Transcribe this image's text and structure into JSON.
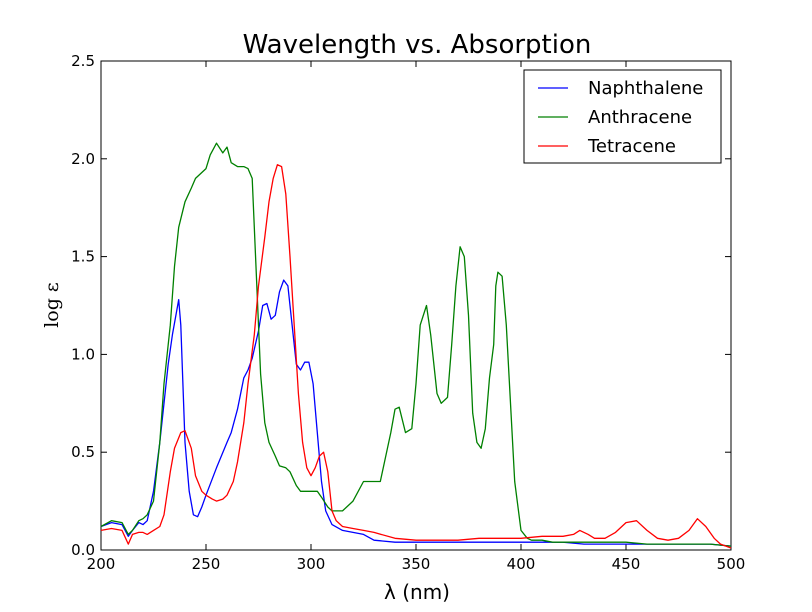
{
  "chart_data": {
    "type": "line",
    "title": "Wavelength vs. Absorption",
    "xlabel": "λ (nm)",
    "ylabel": "log ε",
    "xlim": [
      200,
      500
    ],
    "ylim": [
      0.0,
      2.5
    ],
    "xticks": [
      200,
      250,
      300,
      350,
      400,
      450,
      500
    ],
    "yticks": [
      0.0,
      0.5,
      1.0,
      1.5,
      2.0,
      2.5
    ],
    "xtick_labels": [
      "200",
      "250",
      "300",
      "350",
      "400",
      "450",
      "500"
    ],
    "ytick_labels": [
      "0.0",
      "0.5",
      "1.0",
      "1.5",
      "2.0",
      "2.5"
    ],
    "legend_position": "top-right",
    "grid": false,
    "series": [
      {
        "name": "Naphthalene",
        "color": "#0000ff",
        "x": [
          200,
          205,
          210,
          213,
          215,
          218,
          220,
          222,
          225,
          228,
          230,
          232,
          234,
          236,
          237,
          238,
          240,
          242,
          244,
          246,
          248,
          250,
          255,
          260,
          262,
          265,
          268,
          270,
          272,
          275,
          277,
          279,
          281,
          283,
          285,
          287,
          289,
          291,
          293,
          295,
          297,
          299,
          301,
          303,
          305,
          307,
          310,
          315,
          320,
          325,
          330,
          340,
          350,
          360,
          370,
          380,
          390,
          400,
          410,
          420,
          430,
          440,
          450,
          460,
          470,
          480,
          490,
          500
        ],
        "values": [
          0.12,
          0.14,
          0.13,
          0.07,
          0.1,
          0.14,
          0.13,
          0.15,
          0.3,
          0.55,
          0.75,
          0.95,
          1.1,
          1.22,
          1.28,
          1.15,
          0.55,
          0.3,
          0.18,
          0.17,
          0.22,
          0.28,
          0.42,
          0.55,
          0.6,
          0.72,
          0.88,
          0.92,
          0.98,
          1.12,
          1.25,
          1.26,
          1.18,
          1.2,
          1.32,
          1.38,
          1.35,
          1.15,
          0.95,
          0.92,
          0.96,
          0.96,
          0.85,
          0.6,
          0.35,
          0.2,
          0.13,
          0.1,
          0.09,
          0.08,
          0.05,
          0.04,
          0.04,
          0.04,
          0.04,
          0.04,
          0.04,
          0.04,
          0.04,
          0.04,
          0.03,
          0.03,
          0.03,
          0.03,
          0.03,
          0.03,
          0.03,
          0.02
        ]
      },
      {
        "name": "Anthracene",
        "color": "#008000",
        "x": [
          200,
          205,
          210,
          213,
          215,
          218,
          220,
          222,
          225,
          228,
          230,
          233,
          235,
          237,
          240,
          243,
          245,
          250,
          252,
          255,
          258,
          260,
          262,
          265,
          268,
          270,
          272,
          274,
          276,
          278,
          280,
          283,
          285,
          288,
          290,
          293,
          295,
          300,
          303,
          305,
          308,
          310,
          315,
          320,
          325,
          330,
          333,
          335,
          338,
          340,
          342,
          345,
          348,
          350,
          352,
          355,
          357,
          360,
          362,
          365,
          367,
          369,
          371,
          373,
          375,
          377,
          379,
          381,
          383,
          385,
          387,
          388,
          389,
          391,
          393,
          395,
          397,
          400,
          403,
          405,
          408,
          410,
          415,
          420,
          430,
          440,
          450,
          460,
          470,
          480,
          490,
          500
        ],
        "values": [
          0.12,
          0.15,
          0.14,
          0.08,
          0.1,
          0.15,
          0.16,
          0.18,
          0.25,
          0.55,
          0.85,
          1.15,
          1.45,
          1.65,
          1.78,
          1.85,
          1.9,
          1.95,
          2.02,
          2.08,
          2.03,
          2.06,
          1.98,
          1.96,
          1.96,
          1.95,
          1.9,
          1.4,
          0.9,
          0.65,
          0.55,
          0.48,
          0.43,
          0.42,
          0.4,
          0.33,
          0.3,
          0.3,
          0.3,
          0.27,
          0.22,
          0.2,
          0.2,
          0.25,
          0.35,
          0.35,
          0.35,
          0.45,
          0.6,
          0.72,
          0.73,
          0.6,
          0.62,
          0.85,
          1.15,
          1.25,
          1.1,
          0.8,
          0.75,
          0.78,
          1.05,
          1.35,
          1.55,
          1.5,
          1.2,
          0.7,
          0.55,
          0.52,
          0.62,
          0.88,
          1.05,
          1.35,
          1.42,
          1.4,
          1.15,
          0.75,
          0.35,
          0.1,
          0.06,
          0.05,
          0.05,
          0.05,
          0.04,
          0.04,
          0.04,
          0.04,
          0.04,
          0.03,
          0.03,
          0.03,
          0.03,
          0.02
        ]
      },
      {
        "name": "Tetracene",
        "color": "#ff0000",
        "x": [
          200,
          205,
          210,
          213,
          215,
          218,
          220,
          222,
          225,
          228,
          230,
          233,
          235,
          238,
          240,
          243,
          245,
          248,
          250,
          253,
          255,
          258,
          260,
          263,
          265,
          268,
          270,
          273,
          275,
          278,
          280,
          282,
          284,
          286,
          288,
          290,
          292,
          294,
          296,
          298,
          300,
          302,
          304,
          306,
          308,
          310,
          312,
          315,
          320,
          325,
          330,
          340,
          350,
          360,
          370,
          380,
          390,
          400,
          410,
          420,
          425,
          428,
          432,
          435,
          440,
          445,
          450,
          455,
          460,
          465,
          470,
          475,
          480,
          484,
          488,
          492,
          495,
          500
        ],
        "values": [
          0.1,
          0.11,
          0.1,
          0.03,
          0.08,
          0.09,
          0.09,
          0.08,
          0.1,
          0.12,
          0.18,
          0.4,
          0.52,
          0.6,
          0.61,
          0.52,
          0.38,
          0.3,
          0.28,
          0.26,
          0.25,
          0.26,
          0.28,
          0.35,
          0.45,
          0.65,
          0.85,
          1.1,
          1.35,
          1.6,
          1.78,
          1.9,
          1.97,
          1.96,
          1.82,
          1.5,
          1.15,
          0.8,
          0.55,
          0.42,
          0.38,
          0.42,
          0.48,
          0.5,
          0.4,
          0.2,
          0.15,
          0.12,
          0.11,
          0.1,
          0.09,
          0.06,
          0.05,
          0.05,
          0.05,
          0.06,
          0.06,
          0.06,
          0.07,
          0.07,
          0.08,
          0.1,
          0.08,
          0.06,
          0.06,
          0.09,
          0.14,
          0.15,
          0.1,
          0.06,
          0.05,
          0.06,
          0.1,
          0.16,
          0.12,
          0.06,
          0.03,
          0.01
        ]
      }
    ]
  }
}
